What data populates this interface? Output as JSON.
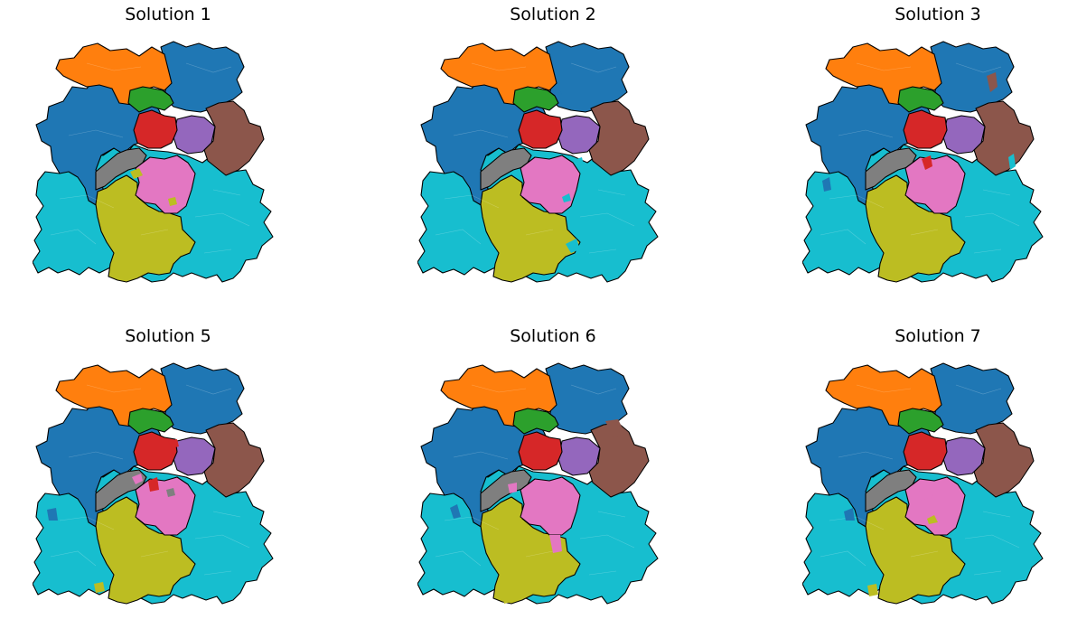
{
  "panels": [
    {
      "title": "Solution 1"
    },
    {
      "title": "Solution 2"
    },
    {
      "title": "Solution 3"
    },
    {
      "title": "Solution 5"
    },
    {
      "title": "Solution 6"
    },
    {
      "title": "Solution 7"
    }
  ],
  "colors": {
    "orange": "#ff7f0e",
    "blue": "#1f77b4",
    "green": "#2ca02c",
    "red": "#d62728",
    "purple": "#9467bd",
    "brown": "#8c564b",
    "pink": "#e377c2",
    "gray": "#7f7f7f",
    "olive": "#bcbd22",
    "cyan": "#17becf"
  }
}
